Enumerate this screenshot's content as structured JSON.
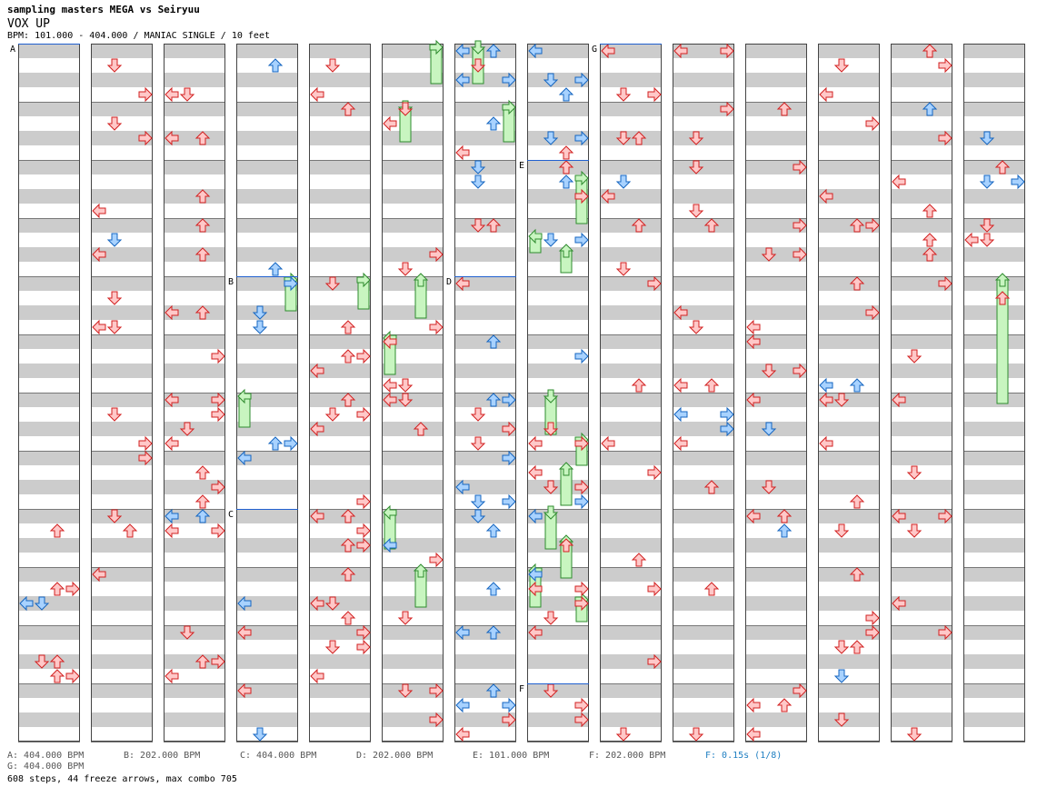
{
  "header": {
    "title": "sampling masters MEGA vs Seiryuu",
    "song_type": "VOX UP",
    "bpm_info": "BPM: 101.000 - 404.000 / MANIAC SINGLE / 10 feet"
  },
  "colors": {
    "arrow_red_fill": "#ffc8c8",
    "arrow_red_stroke": "#d22020",
    "arrow_blue_fill": "#a8d2ff",
    "arrow_blue_stroke": "#1565c0",
    "freeze_fill": "#c8f5c0",
    "freeze_stroke": "#2e8b2e",
    "stripe_gray": "#cccccc",
    "bpm_marker": "#2060d0"
  },
  "sections": [
    {
      "label": "A"
    },
    {
      "label": "B"
    },
    {
      "label": "C"
    },
    {
      "label": "D"
    },
    {
      "label": "E"
    },
    {
      "label": "F"
    },
    {
      "label": "G"
    }
  ],
  "legend": [
    {
      "text": "A: 404.000 BPM"
    },
    {
      "text": "B: 202.000 BPM"
    },
    {
      "text": "C: 404.000 BPM"
    },
    {
      "text": "D: 202.000 BPM"
    },
    {
      "text": "E: 101.000 BPM"
    },
    {
      "text": "F: 202.000 BPM"
    },
    {
      "text": "F: 0.15s (1/8)"
    },
    {
      "text": "G: 404.000 BPM"
    }
  ],
  "summary": "608 steps, 44 freeze arrows, max combo 705",
  "icons": {
    "left": "arrow-left-icon",
    "down": "arrow-down-icon",
    "up": "arrow-up-icon",
    "right": "arrow-right-icon",
    "freeze": "freeze-arrow-icon"
  }
}
